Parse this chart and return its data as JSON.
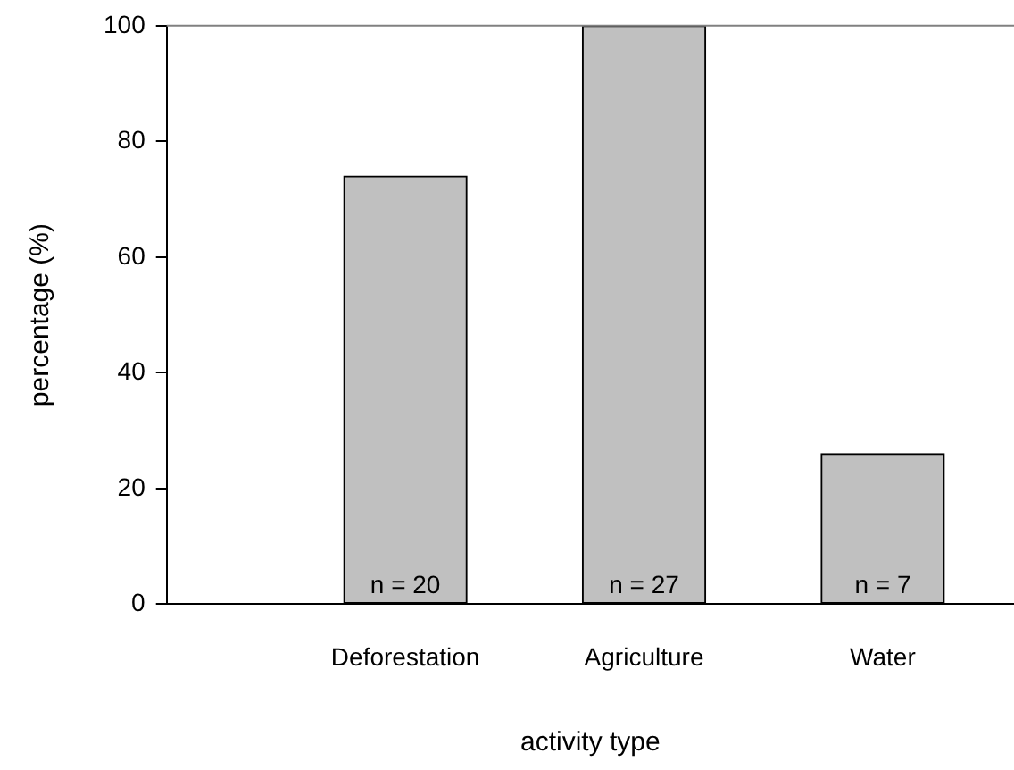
{
  "chart_data": {
    "type": "bar",
    "xlabel": "activity type",
    "ylabel": "percentage (%)",
    "categories": [
      "Deforestation",
      "Agriculture",
      "Water"
    ],
    "values": [
      74,
      100,
      26
    ],
    "color": "#c0c0c0",
    "ylim": [
      0,
      100
    ],
    "yticks": [
      0,
      20,
      40,
      60,
      80,
      100
    ],
    "grid": false,
    "legend": false,
    "ref_lines": [
      {
        "axis": "y",
        "value": 100,
        "color": "#808080"
      }
    ],
    "annotations": [
      "n = 20",
      "n = 27",
      "n = 7"
    ]
  }
}
